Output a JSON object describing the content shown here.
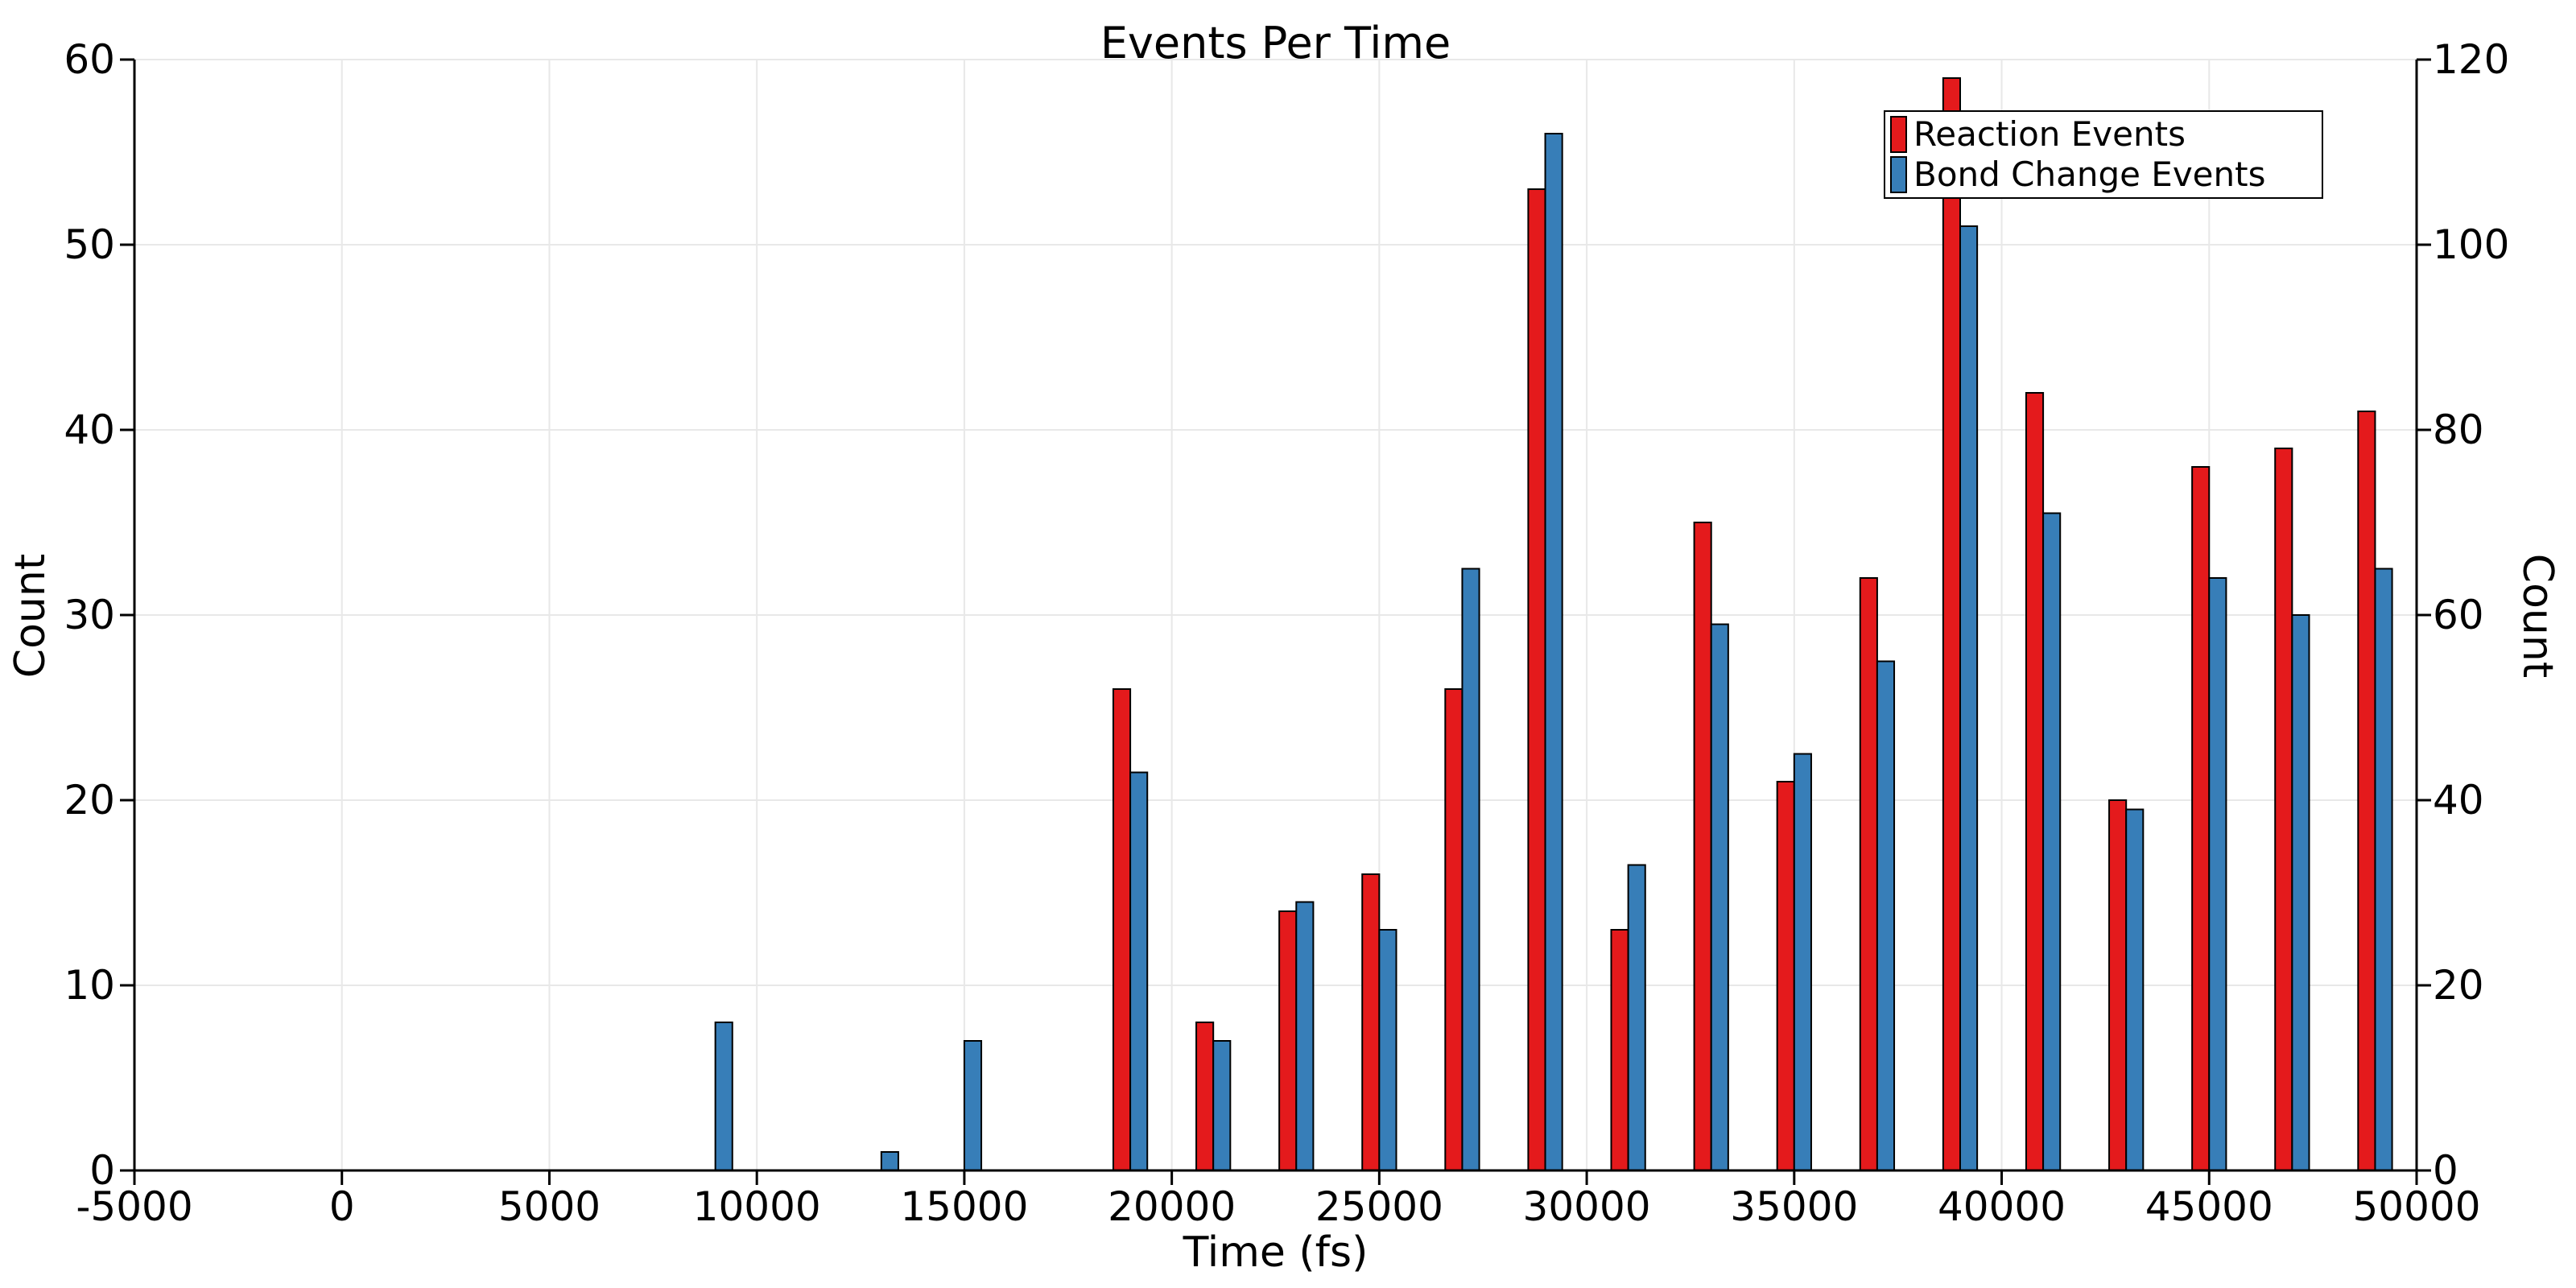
{
  "title": "Events Per Time",
  "x_axis": {
    "label": "Time (fs)",
    "ticks": [
      -5000,
      0,
      5000,
      10000,
      15000,
      20000,
      25000,
      30000,
      35000,
      40000,
      45000,
      50000
    ],
    "tick_labels": [
      "-5000",
      "0",
      "5000",
      "10000",
      "15000",
      "20000",
      "25000",
      "30000",
      "35000",
      "40000",
      "45000",
      "50000"
    ]
  },
  "y_axis_left": {
    "label": "Count",
    "ticks": [
      0,
      10,
      20,
      30,
      40,
      50,
      60
    ],
    "tick_labels": [
      "0",
      "10",
      "20",
      "30",
      "40",
      "50",
      "60"
    ]
  },
  "y_axis_right": {
    "label": "Count",
    "ticks": [
      0,
      20,
      40,
      60,
      80,
      100,
      120
    ],
    "tick_labels": [
      "0",
      "20",
      "40",
      "60",
      "80",
      "100",
      "120"
    ]
  },
  "legend": {
    "position": "top-right",
    "items": [
      {
        "label": "Reaction Events",
        "color": "#e41a1c"
      },
      {
        "label": "Bond Change Events",
        "color": "#377eb8"
      }
    ]
  },
  "colors": {
    "reaction_bar": "#e41a1c",
    "bond_change_bar": "#377eb8",
    "bar_edge": "#000000",
    "gridline": "#e8e8e8",
    "axis": "#000000",
    "background": "#ffffff"
  },
  "chart_data": {
    "type": "bar",
    "title": "Events Per Time",
    "xlabel": "Time (fs)",
    "ylabel_left": "Count",
    "ylabel_right": "Count",
    "x_range": [
      -5000,
      50000
    ],
    "ylim_left": [
      0,
      60
    ],
    "ylim_right": [
      0,
      120
    ],
    "grid": true,
    "legend_position": "top-right",
    "bin_centers_fs": [
      9000,
      13000,
      15000,
      19000,
      21000,
      23000,
      25000,
      27000,
      29000,
      31000,
      33000,
      35000,
      37000,
      39000,
      41000,
      43000,
      45000,
      47000,
      49000
    ],
    "bar_width_fs": 410,
    "series": [
      {
        "name": "Reaction Events",
        "axis": "left",
        "color": "#e41a1c",
        "values": [
          null,
          null,
          null,
          26,
          8,
          14,
          16,
          26,
          53,
          13,
          35,
          21,
          32,
          59,
          42,
          20,
          38,
          39,
          41
        ]
      },
      {
        "name": "Bond Change Events",
        "axis": "right",
        "color": "#377eb8",
        "values": [
          16,
          2,
          14,
          43,
          14,
          29,
          26,
          65,
          112,
          33,
          59,
          45,
          55,
          102,
          71,
          39,
          64,
          60,
          65
        ]
      }
    ]
  }
}
